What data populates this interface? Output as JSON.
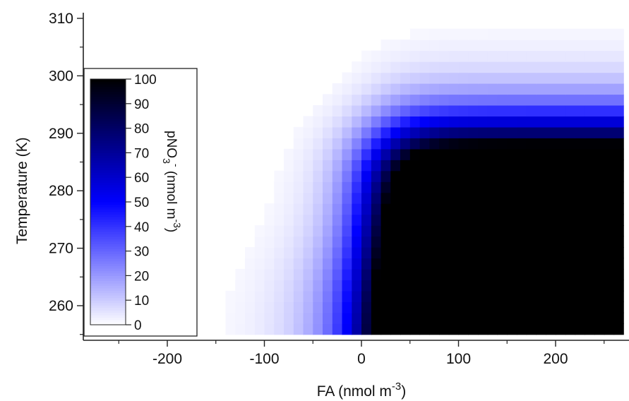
{
  "chart_data": {
    "type": "heatmap",
    "title": "",
    "xlabel": {
      "base": "FA (nmol m",
      "sup": "-3",
      "close": ")"
    },
    "ylabel": "Temperature (K)",
    "xlim": [
      -280,
      270
    ],
    "ylim": [
      255,
      310
    ],
    "x_ticks": [
      -200,
      -100,
      0,
      100,
      200
    ],
    "y_ticks": [
      260,
      270,
      280,
      290,
      300,
      310
    ],
    "x_range_data": [
      -165,
      270
    ],
    "y_range_data": [
      255,
      310
    ],
    "colorbar": {
      "label": {
        "base": "pNO",
        "sub": "3",
        "sup1": "-",
        "mid": " (nmol m",
        "sup2": "-3",
        "close": ")"
      },
      "range": [
        0,
        100
      ],
      "ticks": [
        0,
        10,
        20,
        30,
        40,
        50,
        60,
        70,
        80,
        90,
        100
      ],
      "colors": [
        "#ffffff",
        "#0000ff",
        "#000000"
      ],
      "position": "inside-left"
    },
    "z_description": "pNO3- increases with FA and decreases with temperature; saturates above 100 for FA > ~70 and T < ~290"
  }
}
